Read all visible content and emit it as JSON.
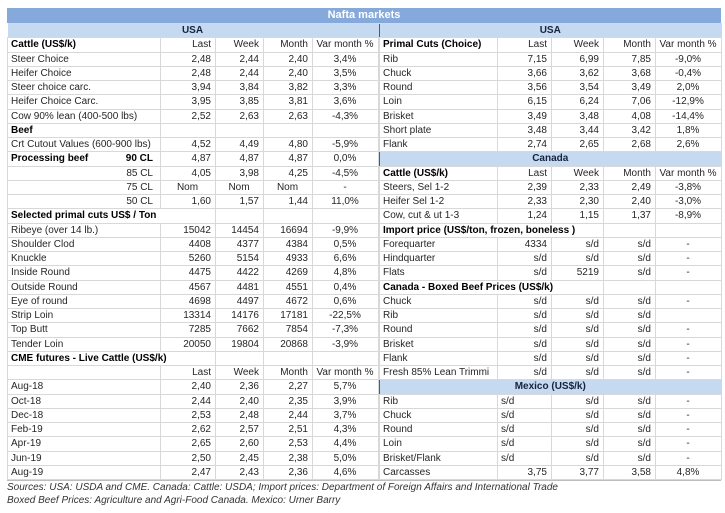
{
  "title": "Nafta markets",
  "column_headers": [
    "Last",
    "Week",
    "Month",
    "Var month %"
  ],
  "colors": {
    "title_bg": "#85A9DB",
    "section_bg": "#C5D9F1",
    "grid": "#D8D8D8",
    "divider": "#5A5A5A"
  },
  "left_table": {
    "rows": [
      {
        "kind": "section",
        "label": "USA"
      },
      {
        "kind": "header",
        "label": "Cattle (US$/k)"
      },
      {
        "label": "Steer Choice",
        "v": [
          "2,48",
          "2,44",
          "2,40",
          "3,4%"
        ]
      },
      {
        "label": "Heifer Choice",
        "v": [
          "2,48",
          "2,44",
          "2,40",
          "3,5%"
        ]
      },
      {
        "label": "Steer choice carc.",
        "v": [
          "3,94",
          "3,84",
          "3,82",
          "3,3%"
        ]
      },
      {
        "label": "Heifer Choice Carc.",
        "v": [
          "3,95",
          "3,85",
          "3,81",
          "3,6%"
        ]
      },
      {
        "label": "Cow 90% lean (400-500 lbs)",
        "v": [
          "2,52",
          "2,63",
          "2,63",
          "-4,3%"
        ]
      },
      {
        "label": "Beef",
        "bold": true,
        "span": 1,
        "v": [
          "",
          "",
          "",
          ""
        ]
      },
      {
        "label": "Crt Cutout Values (600-900 lbs)",
        "v": [
          "4,52",
          "4,49",
          "4,80",
          "-5,9%"
        ]
      },
      {
        "label": "Processing beef",
        "label2": "90 CL",
        "bold": true,
        "v": [
          "4,87",
          "4,87",
          "4,87",
          "0,0%"
        ]
      },
      {
        "label": "",
        "label2": "85 CL",
        "v": [
          "4,05",
          "3,98",
          "4,25",
          "-4,5%"
        ]
      },
      {
        "label": "",
        "label2": "75 CL",
        "center": true,
        "v": [
          "Nom",
          "Nom",
          "Nom",
          "-"
        ]
      },
      {
        "label": "",
        "label2": "50 CL",
        "v": [
          "1,60",
          "1,57",
          "1,44",
          "11,0%"
        ]
      },
      {
        "label": "Selected primal cuts US$ / Ton",
        "bold": true,
        "span": 2,
        "v": [
          "",
          "",
          ""
        ]
      },
      {
        "label": "Ribeye (over 14 lb.)",
        "v": [
          "15042",
          "14454",
          "16694",
          "-9,9%"
        ]
      },
      {
        "label": "Shoulder Clod",
        "v": [
          "4408",
          "4377",
          "4384",
          "0,5%"
        ]
      },
      {
        "label": "Knuckle",
        "v": [
          "5260",
          "5154",
          "4933",
          "6,6%"
        ]
      },
      {
        "label": "Inside Round",
        "v": [
          "4475",
          "4422",
          "4269",
          "4,8%"
        ]
      },
      {
        "label": "Outside Round",
        "v": [
          "4567",
          "4481",
          "4551",
          "0,4%"
        ]
      },
      {
        "label": "Eye of round",
        "v": [
          "4698",
          "4497",
          "4672",
          "0,6%"
        ]
      },
      {
        "label": "Strip Loin",
        "v": [
          "13314",
          "14176",
          "17181",
          "-22,5%"
        ]
      },
      {
        "label": "Top Butt",
        "v": [
          "7285",
          "7662",
          "7854",
          "-7,3%"
        ]
      },
      {
        "label": "Tender Loin",
        "v": [
          "20050",
          "19804",
          "20868",
          "-3,9%"
        ]
      },
      {
        "label": "CME futures - Live Cattle (US$/k)",
        "bold": true,
        "span": 2,
        "v": [
          "",
          "",
          ""
        ]
      },
      {
        "kind": "header",
        "label": ""
      },
      {
        "label": "Aug-18",
        "v": [
          "2,40",
          "2,36",
          "2,27",
          "5,7%"
        ]
      },
      {
        "label": "Oct-18",
        "v": [
          "2,44",
          "2,40",
          "2,35",
          "3,9%"
        ]
      },
      {
        "label": "Dec-18",
        "v": [
          "2,53",
          "2,48",
          "2,44",
          "3,7%"
        ]
      },
      {
        "label": "Feb-19",
        "v": [
          "2,62",
          "2,57",
          "2,51",
          "4,3%"
        ]
      },
      {
        "label": "Apr-19",
        "v": [
          "2,65",
          "2,60",
          "2,53",
          "4,4%"
        ]
      },
      {
        "label": "Jun-19",
        "v": [
          "2,50",
          "2,45",
          "2,38",
          "5,0%"
        ]
      },
      {
        "label": "Aug-19",
        "v": [
          "2,47",
          "2,43",
          "2,36",
          "4,6%"
        ]
      }
    ]
  },
  "right_table": {
    "rows": [
      {
        "kind": "section",
        "label": "USA"
      },
      {
        "kind": "header",
        "label": "Primal Cuts (Choice)"
      },
      {
        "label": "Rib",
        "v": [
          "7,15",
          "6,99",
          "7,85",
          "-9,0%"
        ]
      },
      {
        "label": "Chuck",
        "v": [
          "3,66",
          "3,62",
          "3,68",
          "-0,4%"
        ]
      },
      {
        "label": "Round",
        "v": [
          "3,56",
          "3,54",
          "3,49",
          "2,0%"
        ]
      },
      {
        "label": "Loin",
        "v": [
          "6,15",
          "6,24",
          "7,06",
          "-12,9%"
        ]
      },
      {
        "label": "Brisket",
        "v": [
          "3,49",
          "3,48",
          "4,08",
          "-14,4%"
        ]
      },
      {
        "label": "Short plate",
        "v": [
          "3,48",
          "3,44",
          "3,42",
          "1,8%"
        ]
      },
      {
        "label": "Flank",
        "v": [
          "2,74",
          "2,65",
          "2,68",
          "2,6%"
        ]
      },
      {
        "kind": "section",
        "label": "Canada"
      },
      {
        "kind": "header",
        "label": "Cattle (US$/k)"
      },
      {
        "label": "Steers, Sel 1-2",
        "v": [
          "2,39",
          "2,33",
          "2,49",
          "-3,8%"
        ]
      },
      {
        "label": "Heifer Sel 1-2",
        "v": [
          "2,33",
          "2,30",
          "2,40",
          "-3,0%"
        ]
      },
      {
        "label": "Cow, cut & ut 1-3",
        "v": [
          "1,24",
          "1,15",
          "1,37",
          "-8,9%"
        ]
      },
      {
        "label": "Import price (US$/ton, frozen, boneless )",
        "bold": true,
        "span": 3,
        "v": [
          "",
          ""
        ]
      },
      {
        "label": "Forequarter",
        "v": [
          "4334",
          "s/d",
          "s/d",
          "-"
        ]
      },
      {
        "label": "Hindquarter",
        "v": [
          "s/d",
          "s/d",
          "s/d",
          "-"
        ]
      },
      {
        "label": "Flats",
        "v": [
          "s/d",
          "5219",
          "s/d",
          "-"
        ]
      },
      {
        "label": "Canada - Boxed Beef Prices (US$/k)",
        "bold": true,
        "span": 3,
        "v": [
          "",
          ""
        ]
      },
      {
        "label": "Chuck",
        "v": [
          "s/d",
          "s/d",
          "s/d",
          "-"
        ]
      },
      {
        "label": "Rib",
        "v": [
          "s/d",
          "s/d",
          "s/d",
          ""
        ]
      },
      {
        "label": "Round",
        "v": [
          "s/d",
          "s/d",
          "s/d",
          "-"
        ]
      },
      {
        "label": "Brisket",
        "v": [
          "s/d",
          "s/d",
          "s/d",
          "-"
        ]
      },
      {
        "label": "Flank",
        "v": [
          "s/d",
          "s/d",
          "s/d",
          "-"
        ]
      },
      {
        "label": "Fresh 85% Lean Trimmi",
        "v": [
          "s/d",
          "s/d",
          "s/d",
          "-"
        ]
      },
      {
        "kind": "section",
        "label": "Mexico (US$/k)"
      },
      {
        "label": "Rib",
        "lastLeft": true,
        "v": [
          "s/d",
          "s/d",
          "s/d",
          "-"
        ]
      },
      {
        "label": "Chuck",
        "lastLeft": true,
        "v": [
          "s/d",
          "s/d",
          "s/d",
          "-"
        ]
      },
      {
        "label": "Round",
        "lastLeft": true,
        "v": [
          "s/d",
          "s/d",
          "s/d",
          "-"
        ]
      },
      {
        "label": "Loin",
        "lastLeft": true,
        "v": [
          "s/d",
          "s/d",
          "s/d",
          "-"
        ]
      },
      {
        "label": "Brisket/Flank",
        "lastLeft": true,
        "v": [
          "s/d",
          "s/d",
          "s/d",
          "-"
        ]
      },
      {
        "label": "Carcasses",
        "v": [
          "3,75",
          "3,77",
          "3,58",
          "4,8%"
        ]
      }
    ]
  },
  "footer": {
    "line1": "Sources: USA: USDA and CME. Canada: Cattle: USDA; Import prices: Department of Foreign Affairs and International Trade",
    "line2": "Boxed Beef Prices: Agriculture and Agri-Food Canada. Mexico: Urner Barry"
  }
}
